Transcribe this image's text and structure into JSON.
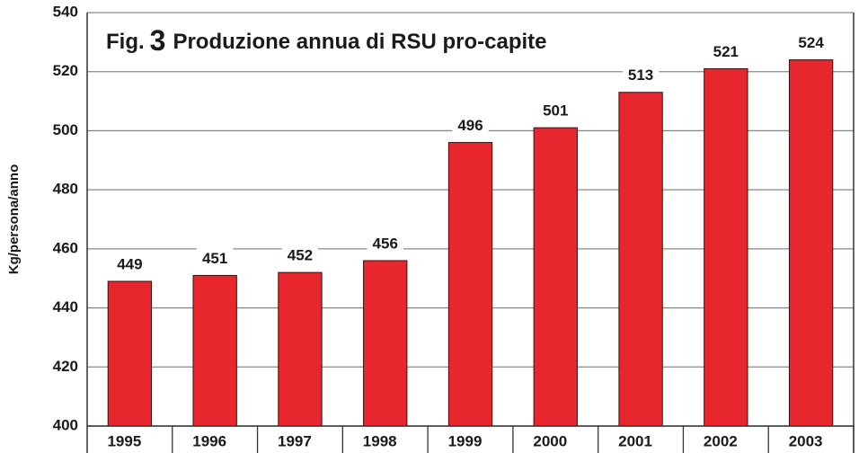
{
  "chart_data": {
    "type": "bar",
    "figure_label": "Fig.",
    "figure_number": "3",
    "title": "Produzione annua di RSU pro-capite",
    "y_label": "Kg/persona/anno",
    "categories": [
      "1995",
      "1996",
      "1997",
      "1998",
      "1999",
      "2000",
      "2001",
      "2002",
      "2003"
    ],
    "values": [
      449,
      451,
      452,
      456,
      496,
      501,
      513,
      521,
      524
    ],
    "color": "#e8262d",
    "ylim": [
      400,
      540
    ],
    "yticks": [
      400,
      420,
      440,
      460,
      480,
      500,
      520,
      540
    ],
    "grid": true
  }
}
